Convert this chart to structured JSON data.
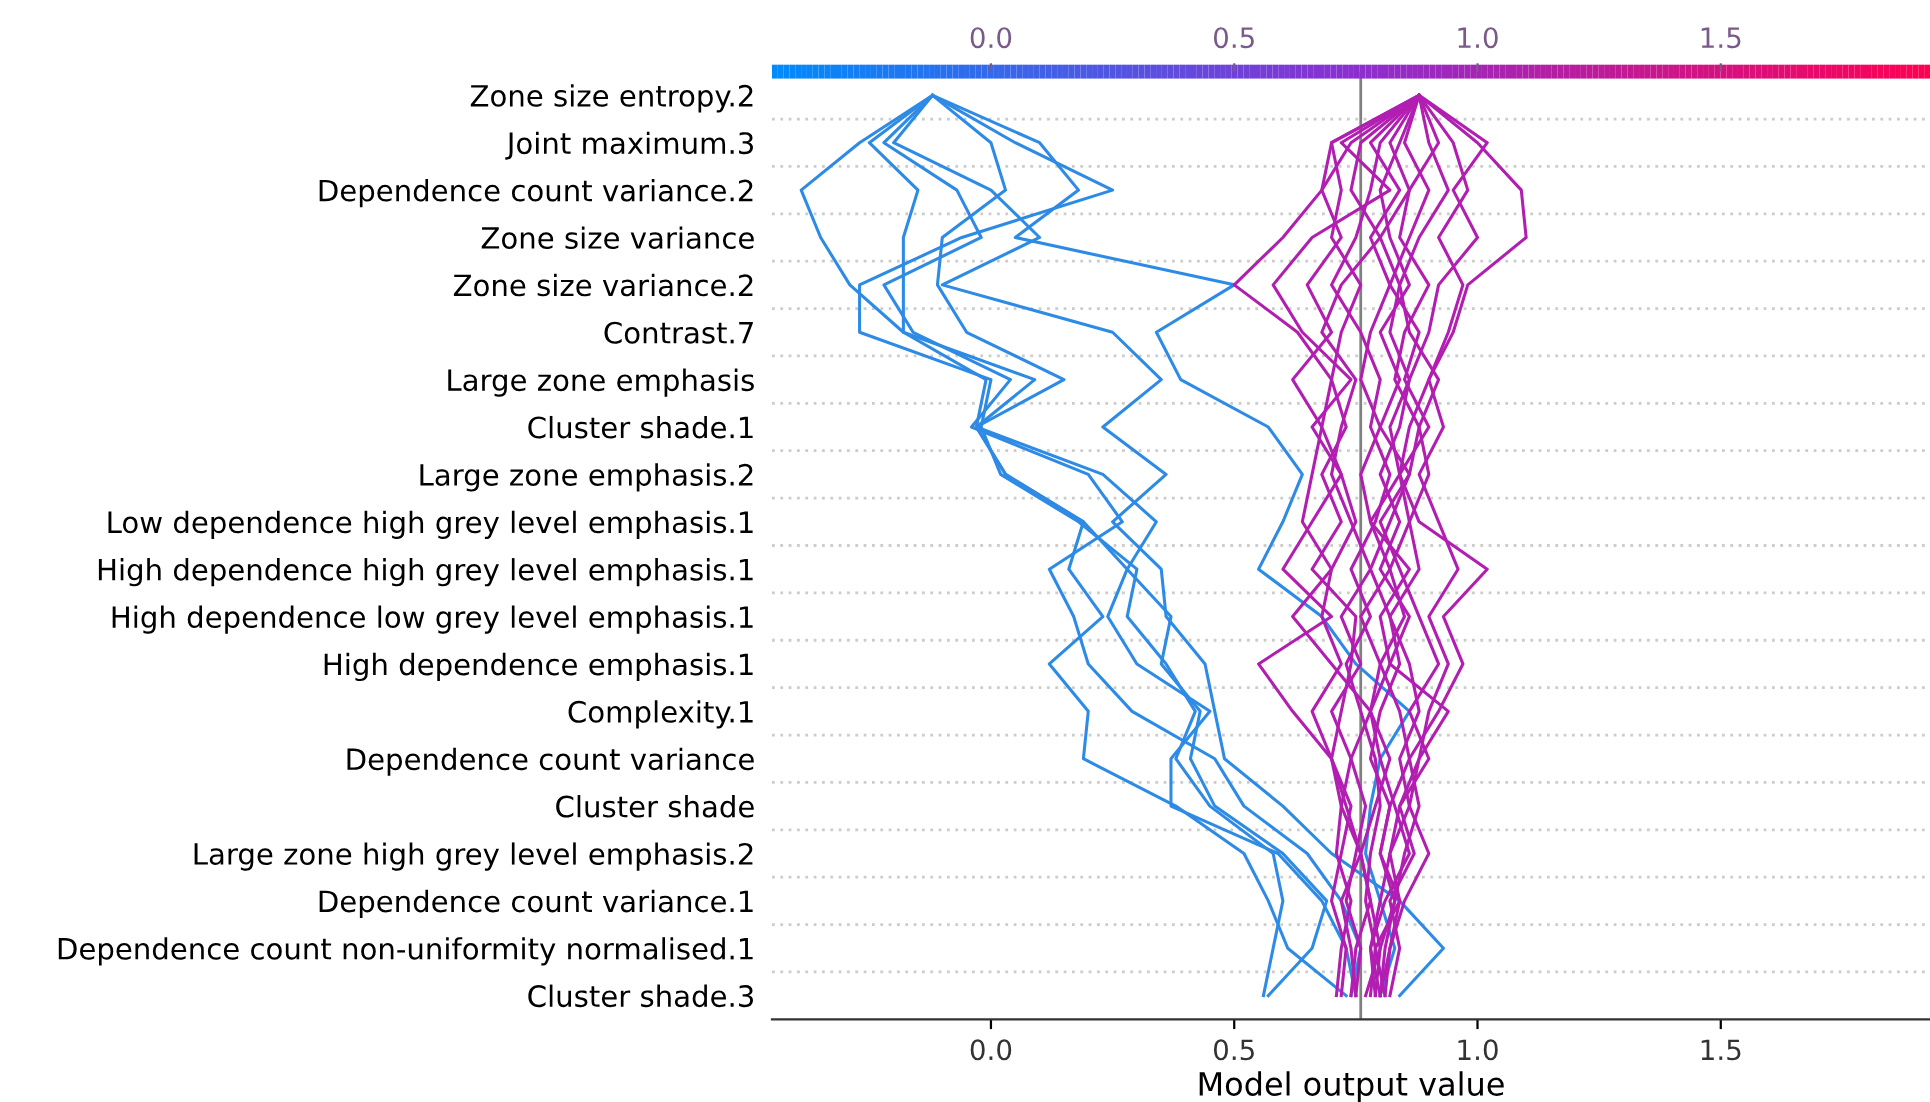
{
  "chart_data": {
    "type": "line",
    "orientation": "horizontal",
    "xlabel": "Model output value",
    "categories": [
      "Zone size entropy.2",
      "Joint maximum.3",
      "Dependence count variance.2",
      "Zone size variance",
      "Zone size variance.2",
      "Contrast.7",
      "Large zone emphasis",
      "Cluster shade.1",
      "Large zone emphasis.2",
      "Low dependence high grey level emphasis.1",
      "High dependence high grey level emphasis.1",
      "High dependence low grey level emphasis.1",
      "High dependence emphasis.1",
      "Complexity.1",
      "Dependence count variance",
      "Cluster shade",
      "Large zone high grey level emphasis.2",
      "Dependence count variance.1",
      "Dependence count non-uniformity normalised.1",
      "Cluster shade.3"
    ],
    "xlim": [
      -0.45,
      1.93
    ],
    "xticks": [
      {
        "value": 0,
        "label": "0.0"
      },
      0.5,
      {
        "value": 1,
        "label": "1.0"
      },
      1.5
    ],
    "x2lim": [
      -0.45,
      1.93
    ],
    "x2ticks": [
      {
        "value": 0,
        "label": "0.0"
      },
      0.5,
      {
        "value": 1,
        "label": "1.0"
      },
      1.5
    ],
    "grid": "y",
    "legend": false,
    "marker": "none",
    "line_style": "solid",
    "ref_lines": [
      {
        "axis": "x",
        "value": 0.76,
        "color": "#808080"
      }
    ],
    "series": [
      {
        "color": "#2d8be6",
        "values": [
          -0.12,
          -0.27,
          -0.39,
          -0.35,
          -0.29,
          -0.18,
          -0.01,
          -0.03,
          0.03,
          0.19,
          0.16,
          0.23,
          0.12,
          0.2,
          0.19,
          0.38,
          0.52,
          0.57,
          0.61,
          0.73
        ]
      },
      {
        "color": "#2d8be6",
        "values": [
          -0.12,
          -0.25,
          -0.15,
          -0.18,
          -0.18,
          -0.18,
          0.09,
          -0.03,
          0.03,
          0.19,
          0.28,
          0.24,
          0.3,
          0.45,
          0.37,
          0.37,
          0.59,
          0.68,
          0.73,
          0.75
        ]
      },
      {
        "color": "#2d8be6",
        "values": [
          -0.12,
          0.0,
          0.03,
          -0.1,
          -0.11,
          -0.05,
          0.15,
          -0.03,
          0.23,
          0.34,
          0.28,
          0.37,
          0.35,
          0.43,
          0.41,
          0.46,
          0.6,
          0.69,
          0.66,
          0.57
        ]
      },
      {
        "color": "#2d8be6",
        "values": [
          -0.12,
          0.1,
          0.18,
          0.05,
          0.5,
          0.34,
          0.39,
          0.57,
          0.64,
          0.6,
          0.55,
          0.68,
          0.75,
          0.86,
          0.8,
          0.78,
          0.77,
          0.8,
          0.83,
          0.8
        ]
      },
      {
        "color": "#2d8be6",
        "values": [
          -0.12,
          0.05,
          0.25,
          -0.06,
          -0.27,
          -0.27,
          0.0,
          -0.02,
          0.02,
          0.18,
          0.3,
          0.28,
          0.36,
          0.42,
          0.38,
          0.45,
          0.58,
          0.6,
          0.58,
          0.56
        ]
      },
      {
        "color": "#2d8be6",
        "values": [
          -0.12,
          -0.22,
          -0.07,
          -0.02,
          -0.22,
          -0.16,
          0.04,
          -0.04,
          0.2,
          0.27,
          0.12,
          0.17,
          0.2,
          0.29,
          0.46,
          0.52,
          0.65,
          0.72,
          0.76,
          0.74
        ]
      },
      {
        "color": "#2d8be6",
        "values": [
          -0.12,
          -0.2,
          0.0,
          0.1,
          -0.1,
          0.25,
          0.35,
          0.23,
          0.36,
          0.25,
          0.35,
          0.36,
          0.44,
          0.46,
          0.48,
          0.6,
          0.7,
          0.84,
          0.93,
          0.84
        ]
      },
      {
        "color": "#b11eb1",
        "values": [
          0.88,
          0.7,
          0.68,
          0.6,
          0.5,
          0.63,
          0.7,
          0.68,
          0.72,
          0.75,
          0.7,
          0.62,
          0.7,
          0.78,
          0.74,
          0.72,
          0.76,
          0.78,
          0.75,
          0.74
        ]
      },
      {
        "color": "#b11eb1",
        "values": [
          0.88,
          1.0,
          1.09,
          1.1,
          0.98,
          0.95,
          0.9,
          0.93,
          0.88,
          0.92,
          0.96,
          0.9,
          0.94,
          0.9,
          0.88,
          0.86,
          0.9,
          0.85,
          0.82,
          0.8
        ]
      },
      {
        "color": "#b11eb1",
        "values": [
          0.88,
          0.72,
          0.82,
          0.66,
          0.58,
          0.64,
          0.74,
          0.66,
          0.72,
          0.66,
          0.6,
          0.7,
          0.55,
          0.62,
          0.7,
          0.72,
          0.71,
          0.74,
          0.72,
          0.71
        ]
      },
      {
        "color": "#b11eb1",
        "values": [
          0.88,
          0.95,
          0.98,
          0.92,
          0.97,
          0.94,
          0.9,
          0.86,
          0.84,
          0.88,
          1.02,
          0.93,
          0.97,
          0.92,
          0.86,
          0.88,
          0.85,
          0.83,
          0.8,
          0.79
        ]
      },
      {
        "color": "#b11eb1",
        "values": [
          0.88,
          0.8,
          0.78,
          0.75,
          0.7,
          0.76,
          0.8,
          0.78,
          0.82,
          0.79,
          0.74,
          0.78,
          0.73,
          0.76,
          0.79,
          0.8,
          0.78,
          0.77,
          0.79,
          0.78
        ]
      },
      {
        "color": "#b11eb1",
        "values": [
          0.88,
          0.85,
          0.9,
          0.86,
          0.82,
          0.88,
          0.85,
          0.9,
          0.84,
          0.86,
          0.82,
          0.85,
          0.8,
          0.84,
          0.86,
          0.82,
          0.8,
          0.83,
          0.81,
          0.8
        ]
      },
      {
        "color": "#b11eb1",
        "values": [
          0.88,
          0.76,
          0.74,
          0.8,
          0.72,
          0.68,
          0.75,
          0.72,
          0.7,
          0.74,
          0.78,
          0.72,
          0.76,
          0.7,
          0.74,
          0.77,
          0.75,
          0.73,
          0.76,
          0.75
        ]
      },
      {
        "color": "#b11eb1",
        "values": [
          0.88,
          0.92,
          0.86,
          0.84,
          0.9,
          0.85,
          0.83,
          0.88,
          0.86,
          0.8,
          0.84,
          0.88,
          0.92,
          0.86,
          0.9,
          0.84,
          0.87,
          0.82,
          0.84,
          0.82
        ]
      },
      {
        "color": "#b11eb1",
        "values": [
          0.88,
          0.7,
          0.72,
          0.7,
          0.76,
          0.72,
          0.7,
          0.73,
          0.68,
          0.72,
          0.66,
          0.75,
          0.74,
          0.72,
          0.7,
          0.73,
          0.76,
          0.72,
          0.74,
          0.75
        ]
      },
      {
        "color": "#b11eb1",
        "values": [
          0.88,
          0.84,
          0.8,
          0.82,
          0.86,
          0.8,
          0.84,
          0.8,
          0.86,
          0.82,
          0.78,
          0.82,
          0.84,
          0.8,
          0.78,
          0.82,
          0.8,
          0.84,
          0.82,
          0.81
        ]
      },
      {
        "color": "#b11eb1",
        "values": [
          0.88,
          1.02,
          0.95,
          1.0,
          0.92,
          0.9,
          0.86,
          0.82,
          0.84,
          0.78,
          0.86,
          0.8,
          0.82,
          0.94,
          0.88,
          0.84,
          0.82,
          0.8,
          0.78,
          0.8
        ]
      },
      {
        "color": "#b11eb1",
        "values": [
          0.88,
          0.78,
          0.84,
          0.78,
          0.82,
          0.78,
          0.76,
          0.8,
          0.76,
          0.78,
          0.82,
          0.76,
          0.8,
          0.78,
          0.82,
          0.79,
          0.76,
          0.78,
          0.8,
          0.77
        ]
      },
      {
        "color": "#b11eb1",
        "values": [
          0.88,
          0.9,
          0.94,
          0.88,
          0.84,
          0.86,
          0.92,
          0.88,
          0.9,
          0.86,
          0.88,
          0.82,
          0.86,
          0.88,
          0.84,
          0.86,
          0.82,
          0.84,
          0.79,
          0.81
        ]
      },
      {
        "color": "#b11eb1",
        "values": [
          0.88,
          0.74,
          0.68,
          0.72,
          0.65,
          0.7,
          0.62,
          0.68,
          0.66,
          0.64,
          0.7,
          0.68,
          0.72,
          0.66,
          0.7,
          0.74,
          0.72,
          0.7,
          0.73,
          0.72
        ]
      },
      {
        "color": "#b11eb1",
        "values": [
          0.88,
          0.82,
          0.86,
          0.8,
          0.84,
          0.82,
          0.86,
          0.84,
          0.8,
          0.84,
          0.8,
          0.86,
          0.82,
          0.78,
          0.8,
          0.83,
          0.86,
          0.81,
          0.78,
          0.79
        ]
      }
    ]
  }
}
